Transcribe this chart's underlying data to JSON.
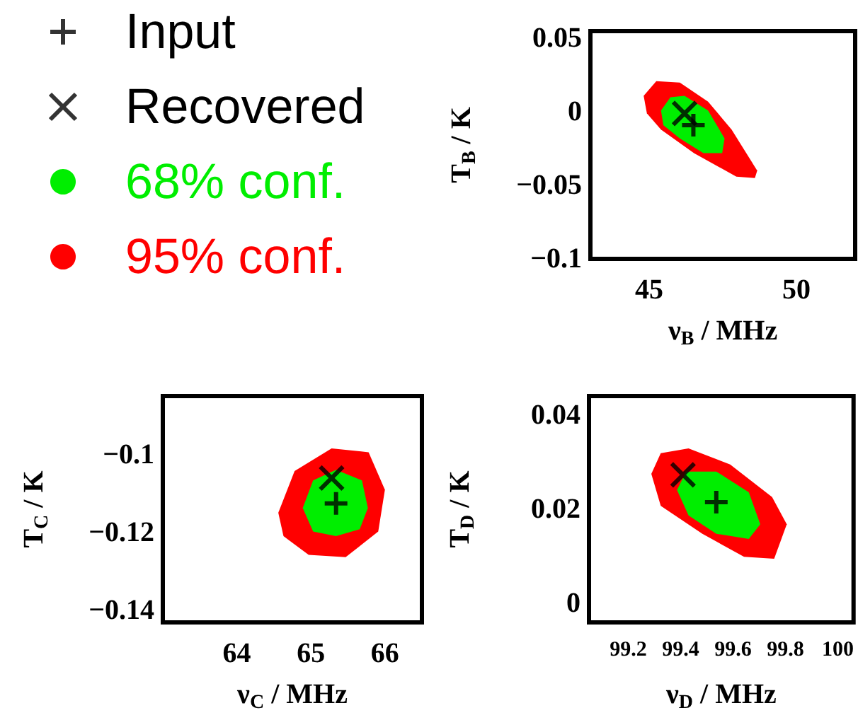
{
  "chart_data": [
    {
      "type": "scatter",
      "xlabel": "ν$_{B}$ / MHz",
      "ylabel": "T$_{B}$ / K",
      "xlim": [
        43,
        52
      ],
      "xticks": [
        45,
        50
      ],
      "ylim": [
        -0.1,
        0.055
      ],
      "yticks": [
        -0.1,
        -0.05,
        0,
        0.05
      ],
      "legend": "top left",
      "series": [
        {
          "name": "Input",
          "marker": "plus",
          "color": "#000000",
          "x": [
            46.5
          ],
          "values": [
            -0.009
          ]
        },
        {
          "name": "Recovered",
          "marker": "cross",
          "color": "#000000",
          "x": [
            46.2
          ],
          "values": [
            -0.001
          ]
        },
        {
          "name": "68% conf.",
          "type": "area",
          "color": "#00ee00",
          "x": [
            45.4,
            45.72,
            46.2,
            47.0,
            47.56,
            47.48,
            46.84,
            46.04,
            45.48
          ],
          "values": [
            0.001,
            0.01,
            0.011,
            0.001,
            -0.018,
            -0.028,
            -0.028,
            -0.018,
            -0.009
          ]
        },
        {
          "name": "95% conf.",
          "type": "area",
          "color": "#ff0000",
          "x": [
            44.81,
            45.24,
            46.04,
            47.0,
            47.8,
            48.67,
            48.59,
            47.96,
            46.52,
            45.4,
            44.92
          ],
          "values": [
            0.011,
            0.021,
            0.02,
            0.007,
            -0.012,
            -0.04,
            -0.045,
            -0.044,
            -0.028,
            -0.012,
            -0.001
          ]
        }
      ]
    },
    {
      "type": "scatter",
      "xlabel": "ν$_{C}$ / MHz",
      "ylabel": "T$_{C}$ / K",
      "xlim": [
        63,
        66.5
      ],
      "xticks": [
        64,
        65,
        66
      ],
      "ylim": [
        -0.143,
        -0.085
      ],
      "yticks": [
        -0.14,
        -0.12,
        -0.1
      ],
      "series": [
        {
          "marker": "plus",
          "color": "#000000",
          "x": [
            65.34
          ],
          "values": [
            -0.1125
          ]
        },
        {
          "marker": "cross",
          "color": "#000000",
          "x": [
            65.28
          ],
          "values": [
            -0.106
          ]
        },
        {
          "type": "area",
          "color": "#00ee00",
          "x": [
            64.89,
            65.03,
            65.34,
            65.69,
            65.77,
            65.66,
            65.34,
            65.03
          ],
          "values": [
            -0.1137,
            -0.1066,
            -0.1039,
            -0.1066,
            -0.1137,
            -0.1191,
            -0.1209,
            -0.1197
          ]
        },
        {
          "type": "area",
          "color": "#ff0000",
          "x": [
            64.56,
            64.78,
            65.28,
            65.78,
            66.0,
            65.91,
            65.47,
            64.97,
            64.63
          ],
          "values": [
            -0.1149,
            -0.1042,
            -0.0984,
            -0.0994,
            -0.109,
            -0.1197,
            -0.1263,
            -0.1257,
            -0.1209
          ]
        }
      ]
    },
    {
      "type": "scatter",
      "xlabel": "ν$_{D}$ / MHz",
      "ylabel": "T$_{D}$ / K",
      "xlim": [
        99.05,
        100.06
      ],
      "xticks": [
        99.2,
        99.4,
        99.6,
        99.8,
        100
      ],
      "ylim": [
        -0.004,
        0.044
      ],
      "yticks": [
        0,
        0.02,
        0.04
      ],
      "series": [
        {
          "marker": "plus",
          "color": "#000000",
          "x": [
            99.536
          ],
          "values": [
            0.0215
          ]
        },
        {
          "marker": "cross",
          "color": "#000000",
          "x": [
            99.409
          ],
          "values": [
            0.0273
          ]
        },
        {
          "type": "area",
          "color": "#00ee00",
          "x": [
            99.386,
            99.421,
            99.536,
            99.66,
            99.704,
            99.66,
            99.536,
            99.43
          ],
          "values": [
            0.0241,
            0.028,
            0.028,
            0.0236,
            0.0168,
            0.0137,
            0.0148,
            0.0187
          ]
        },
        {
          "type": "area",
          "color": "#ff0000",
          "x": [
            99.288,
            99.324,
            99.43,
            99.589,
            99.749,
            99.805,
            99.757,
            99.642,
            99.483,
            99.324
          ],
          "values": [
            0.0275,
            0.0319,
            0.0329,
            0.0295,
            0.0226,
            0.0168,
            0.0095,
            0.0099,
            0.0148,
            0.0207
          ]
        }
      ]
    }
  ]
}
